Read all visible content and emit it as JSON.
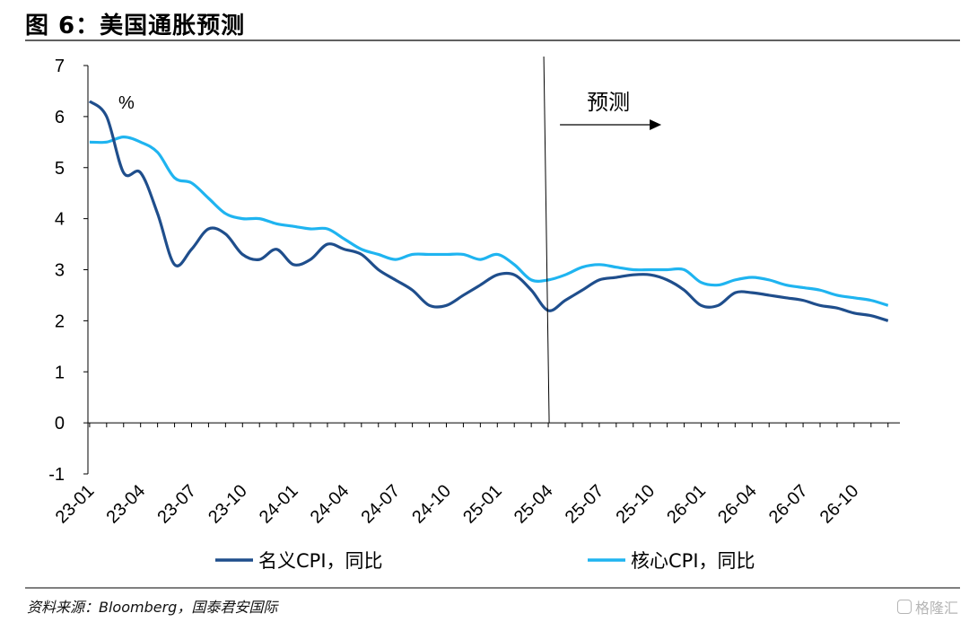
{
  "figure_title": "图 6：美国通胀预测",
  "source_note": "资料来源：Bloomberg，国泰君安国际",
  "watermark": "格隆汇",
  "chart_data": {
    "type": "line",
    "unit_label": "%",
    "forecast_label": "预测",
    "forecast_start": "25-04",
    "x_tick_labels": [
      "23-01",
      "23-04",
      "23-07",
      "23-10",
      "24-01",
      "24-04",
      "24-07",
      "24-10",
      "25-01",
      "25-04",
      "25-07",
      "25-10",
      "26-01",
      "26-04",
      "26-07",
      "26-10"
    ],
    "y_ticks": [
      -1,
      0,
      1,
      2,
      3,
      4,
      5,
      6,
      7
    ],
    "ylim": [
      -1,
      7
    ],
    "x": [
      "23-01",
      "23-02",
      "23-03",
      "23-04",
      "23-05",
      "23-06",
      "23-07",
      "23-08",
      "23-09",
      "23-10",
      "23-11",
      "23-12",
      "24-01",
      "24-02",
      "24-03",
      "24-04",
      "24-05",
      "24-06",
      "24-07",
      "24-08",
      "24-09",
      "24-10",
      "24-11",
      "24-12",
      "25-01",
      "25-02",
      "25-03",
      "25-04",
      "25-05",
      "25-06",
      "25-07",
      "25-08",
      "25-09",
      "25-10",
      "25-11",
      "25-12",
      "26-01",
      "26-02",
      "26-03",
      "26-04",
      "26-05",
      "26-06",
      "26-07",
      "26-08",
      "26-09",
      "26-10",
      "26-11",
      "26-12"
    ],
    "series": [
      {
        "name": "名义CPI，同比",
        "color": "#1f4e8c",
        "values": [
          6.3,
          6.0,
          4.9,
          4.9,
          4.1,
          3.1,
          3.4,
          3.8,
          3.7,
          3.3,
          3.2,
          3.4,
          3.1,
          3.2,
          3.5,
          3.4,
          3.3,
          3.0,
          2.8,
          2.6,
          2.3,
          2.3,
          2.5,
          2.7,
          2.9,
          2.9,
          2.6,
          2.2,
          2.4,
          2.6,
          2.8,
          2.85,
          2.9,
          2.9,
          2.8,
          2.6,
          2.3,
          2.3,
          2.55,
          2.55,
          2.5,
          2.45,
          2.4,
          2.3,
          2.25,
          2.15,
          2.1,
          2.0
        ]
      },
      {
        "name": "核心CPI，同比",
        "color": "#1fb4f0",
        "values": [
          5.5,
          5.5,
          5.6,
          5.5,
          5.3,
          4.8,
          4.7,
          4.4,
          4.1,
          4.0,
          4.0,
          3.9,
          3.85,
          3.8,
          3.8,
          3.6,
          3.4,
          3.3,
          3.2,
          3.3,
          3.3,
          3.3,
          3.3,
          3.2,
          3.3,
          3.1,
          2.8,
          2.8,
          2.9,
          3.05,
          3.1,
          3.05,
          3.0,
          3.0,
          3.0,
          3.0,
          2.75,
          2.7,
          2.8,
          2.85,
          2.8,
          2.7,
          2.65,
          2.6,
          2.5,
          2.45,
          2.4,
          2.3
        ]
      }
    ]
  }
}
